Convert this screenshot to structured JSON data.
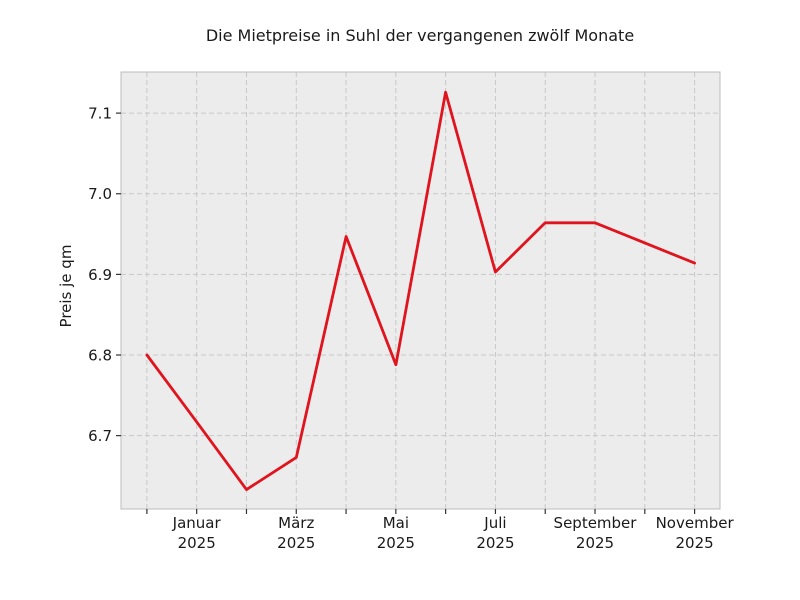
{
  "figure": {
    "title": "Die Mietpreise in Suhl der vergangenen zwölf Monate",
    "ylabel": "Preis je qm"
  },
  "chart_data": {
    "type": "line",
    "title": "Die Mietpreise in Suhl der vergangenen zwölf Monate",
    "xlabel": "",
    "ylabel": "Preis je qm",
    "x": [
      0,
      1,
      2,
      3,
      4,
      5,
      6,
      7,
      8,
      9,
      10,
      11
    ],
    "values": [
      6.8,
      6.717,
      6.633,
      6.673,
      6.947,
      6.788,
      7.126,
      6.903,
      6.964,
      6.964,
      6.939,
      6.914
    ],
    "x_tick_positions": [
      1,
      3,
      5,
      7,
      9,
      11
    ],
    "x_tick_labels": [
      [
        "Januar",
        "2025"
      ],
      [
        "März",
        "2025"
      ],
      [
        "Mai",
        "2025"
      ],
      [
        "Juli",
        "2025"
      ],
      [
        "September",
        "2025"
      ],
      [
        "November",
        "2025"
      ]
    ],
    "y_ticks": [
      "6.7",
      "6.8",
      "6.9",
      "7.0",
      "7.1"
    ],
    "y_tick_values": [
      6.7,
      6.8,
      6.9,
      7.0,
      7.1
    ],
    "xlim": [
      -0.52,
      11.51
    ],
    "ylim": [
      6.609,
      7.151
    ],
    "grid": true,
    "grid_style": "dashed",
    "legend_position": "none",
    "line_color": "#e0141e",
    "plot_background_color": "#ececec",
    "grid_color": "#c8c8c8",
    "spine_color": "#bcbcbc",
    "tick_color": "#333333"
  }
}
